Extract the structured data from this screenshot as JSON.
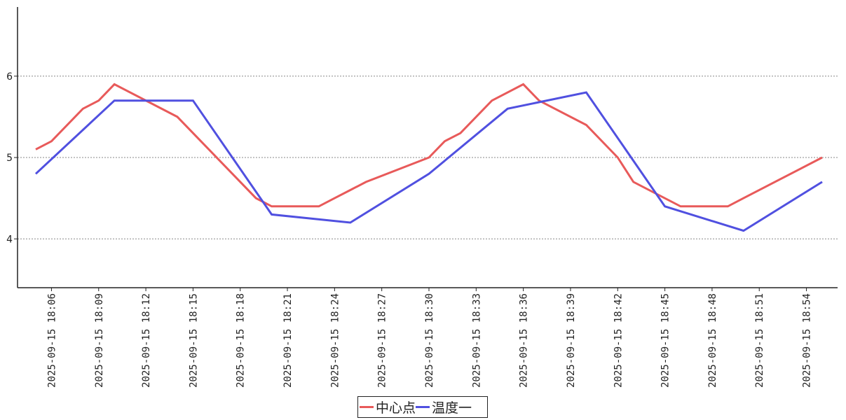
{
  "chart_data": {
    "type": "line",
    "title": "",
    "xlabel": "",
    "ylabel": "",
    "ylim": [
      3.4,
      6.85
    ],
    "yticks": [
      "4",
      "5",
      "6"
    ],
    "grid": "horizontal dashed",
    "legend_position": "bottom-center",
    "x_tick_labels": [
      "2025-09-15 18:06",
      "2025-09-15 18:09",
      "2025-09-15 18:12",
      "2025-09-15 18:15",
      "2025-09-15 18:18",
      "2025-09-15 18:21",
      "2025-09-15 18:24",
      "2025-09-15 18:27",
      "2025-09-15 18:30",
      "2025-09-15 18:33",
      "2025-09-15 18:36",
      "2025-09-15 18:39",
      "2025-09-15 18:42",
      "2025-09-15 18:45",
      "2025-09-15 18:48",
      "2025-09-15 18:51",
      "2025-09-15 18:54"
    ],
    "series": [
      {
        "name": "中心点",
        "color": "#e85a5a",
        "points": [
          [
            "2025-09-15 18:05",
            5.1
          ],
          [
            "2025-09-15 18:06",
            5.2
          ],
          [
            "2025-09-15 18:08",
            5.6
          ],
          [
            "2025-09-15 18:09",
            5.7
          ],
          [
            "2025-09-15 18:10",
            5.9
          ],
          [
            "2025-09-15 18:14",
            5.5
          ],
          [
            "2025-09-15 18:19",
            4.5
          ],
          [
            "2025-09-15 18:20",
            4.4
          ],
          [
            "2025-09-15 18:23",
            4.4
          ],
          [
            "2025-09-15 18:24",
            4.5
          ],
          [
            "2025-09-15 18:25",
            4.6
          ],
          [
            "2025-09-15 18:26",
            4.7
          ],
          [
            "2025-09-15 18:30",
            5.0
          ],
          [
            "2025-09-15 18:31",
            5.2
          ],
          [
            "2025-09-15 18:32",
            5.3
          ],
          [
            "2025-09-15 18:34",
            5.7
          ],
          [
            "2025-09-15 18:36",
            5.9
          ],
          [
            "2025-09-15 18:37",
            5.7
          ],
          [
            "2025-09-15 18:40",
            5.4
          ],
          [
            "2025-09-15 18:42",
            5.0
          ],
          [
            "2025-09-15 18:43",
            4.7
          ],
          [
            "2025-09-15 18:46",
            4.4
          ],
          [
            "2025-09-15 18:49",
            4.4
          ],
          [
            "2025-09-15 18:50",
            4.5
          ],
          [
            "2025-09-15 18:55",
            5.0
          ]
        ]
      },
      {
        "name": "温度一",
        "color": "#5050e0",
        "points": [
          [
            "2025-09-15 18:05",
            4.8
          ],
          [
            "2025-09-15 18:10",
            5.7
          ],
          [
            "2025-09-15 18:15",
            5.7
          ],
          [
            "2025-09-15 18:20",
            4.3
          ],
          [
            "2025-09-15 18:25",
            4.2
          ],
          [
            "2025-09-15 18:30",
            4.8
          ],
          [
            "2025-09-15 18:35",
            5.6
          ],
          [
            "2025-09-15 18:40",
            5.8
          ],
          [
            "2025-09-15 18:45",
            4.4
          ],
          [
            "2025-09-15 18:50",
            4.1
          ],
          [
            "2025-09-15 18:55",
            4.7
          ]
        ]
      }
    ]
  }
}
